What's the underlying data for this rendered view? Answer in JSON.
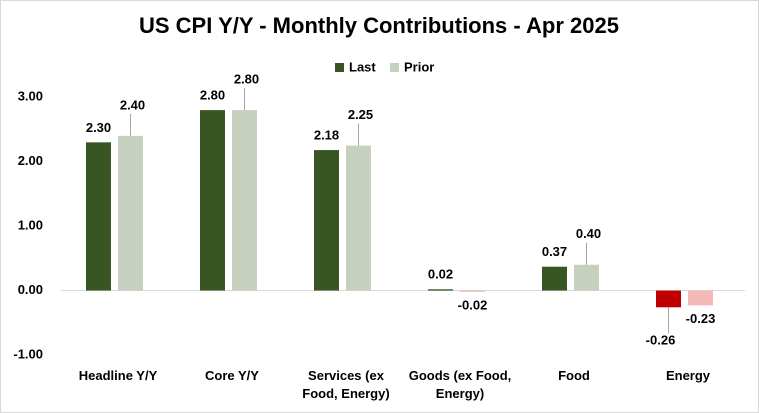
{
  "chart_data": {
    "type": "bar",
    "title": "US CPI Y/Y - Monthly Contributions - Apr 2025",
    "categories": [
      "Headline Y/Y",
      "Core Y/Y",
      "Services (ex Food, Energy)",
      "Goods (ex Food, Energy)",
      "Food",
      "Energy"
    ],
    "series": [
      {
        "name": "Last",
        "color": "#375623",
        "negative_color": "#c00000",
        "values": [
          2.3,
          2.8,
          2.18,
          0.02,
          0.37,
          -0.26
        ],
        "value_labels": [
          "2.30",
          "2.80",
          "2.18",
          "0.02",
          "0.37",
          "-0.26"
        ]
      },
      {
        "name": "Prior",
        "color": "#c5d0bf",
        "negative_color": "#f4b8b8",
        "values": [
          2.4,
          2.8,
          2.25,
          -0.02,
          0.4,
          -0.23
        ],
        "value_labels": [
          "2.40",
          "2.80",
          "2.25",
          "-0.02",
          "0.40",
          "-0.23"
        ]
      }
    ],
    "ylim": [
      -1,
      3.5
    ],
    "yticks": [
      {
        "value": -1,
        "label": "-1.00"
      },
      {
        "value": 0,
        "label": "0.00"
      },
      {
        "value": 1,
        "label": "1.00"
      },
      {
        "value": 2,
        "label": "2.00"
      },
      {
        "value": 3,
        "label": "3.00"
      }
    ],
    "legend": "top"
  }
}
